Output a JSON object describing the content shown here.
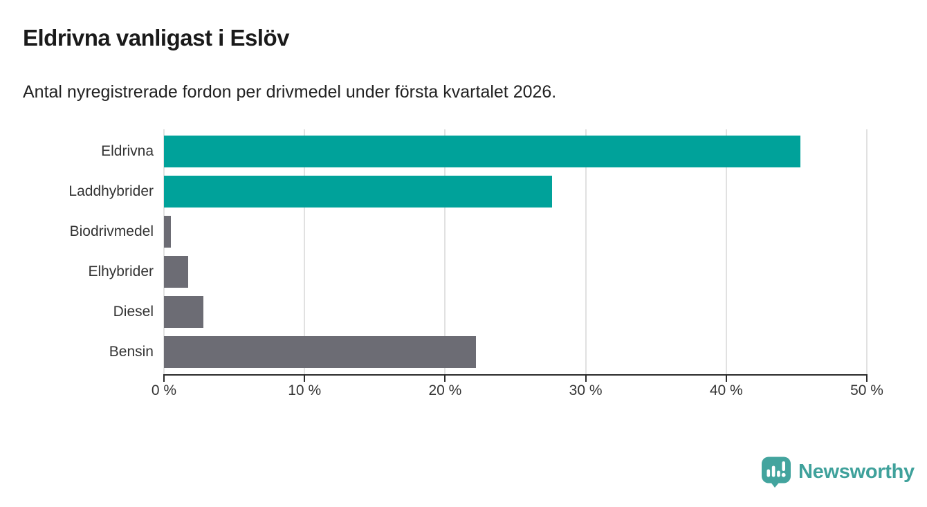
{
  "header": {
    "title": "Eldrivna vanligast i Eslöv",
    "subtitle": "Antal nyregistrerade fordon per drivmedel under första kvartalet 2026."
  },
  "chart_data": {
    "type": "bar",
    "orientation": "horizontal",
    "title": "Eldrivna vanligast i Eslöv",
    "subtitle": "Antal nyregistrerade fordon per drivmedel under första kvartalet 2026.",
    "categories": [
      "Eldrivna",
      "Laddhybrider",
      "Biodrivmedel",
      "Elhybrider",
      "Diesel",
      "Bensin"
    ],
    "values": [
      45.3,
      27.6,
      0.5,
      1.7,
      2.8,
      22.2
    ],
    "unit": "%",
    "xlim": [
      0,
      50
    ],
    "x_ticks": [
      0,
      10,
      20,
      30,
      40,
      50
    ],
    "x_tick_labels": [
      "0 %",
      "10 %",
      "20 %",
      "30 %",
      "40 %",
      "50 %"
    ],
    "bar_colors": [
      "#00a29a",
      "#00a29a",
      "#6c6c74",
      "#6c6c74",
      "#6c6c74",
      "#6c6c74"
    ],
    "grid": true,
    "legend": "none"
  },
  "colors": {
    "accent_teal": "#00a29a",
    "neutral_gray": "#6c6c74",
    "gridline": "#e1e1e1",
    "axis_line": "#2b2b2b",
    "axis_text": "#333333",
    "title_text": "#1a1a1a",
    "brand_teal": "#3fa19b"
  },
  "footer": {
    "brand": "Newsworthy",
    "logo_icon": "newsworthy-speech-bubble-bar-chart-icon"
  }
}
